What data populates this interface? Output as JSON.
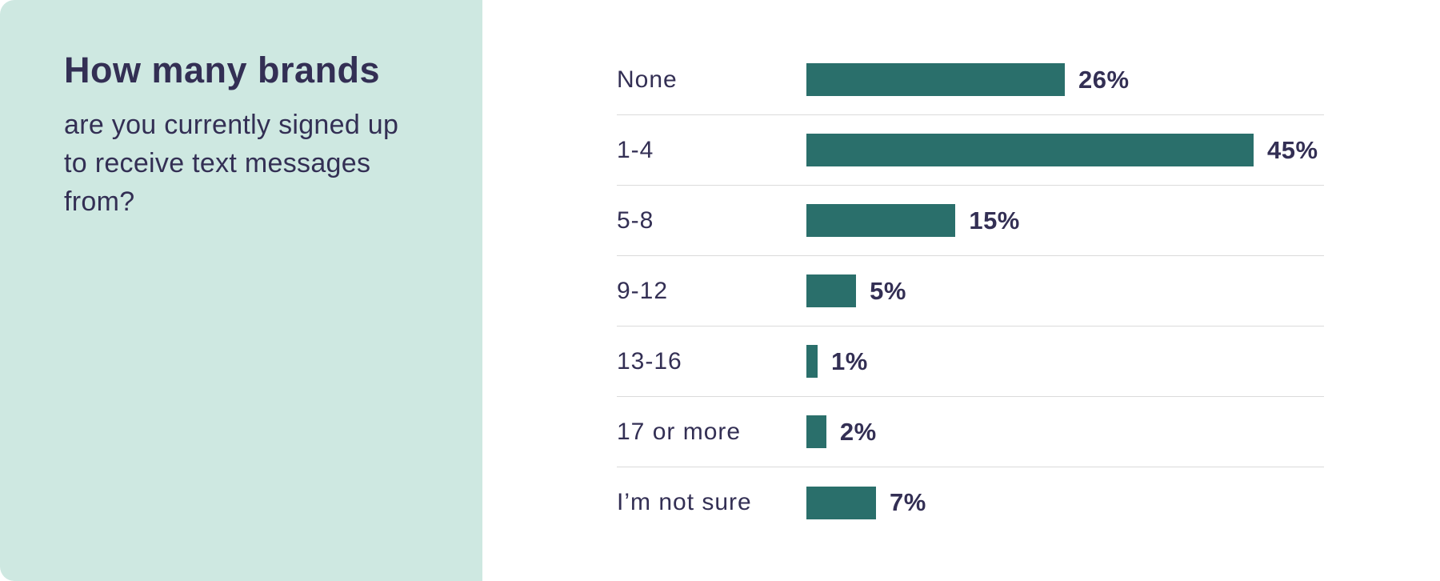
{
  "panel": {
    "title": "How many brands",
    "subtitle": "are you currently signed up to receive text messages from?"
  },
  "colors": {
    "left_panel_background": "#CEE8E1",
    "bar_color": "#2A6F6B",
    "text_color": "#332F54",
    "divider_color": "#DBDBDB",
    "chart_background": "#FFFFFF"
  },
  "chart_data": {
    "type": "bar",
    "orientation": "horizontal",
    "title": "How many brands are you currently signed up to receive text messages from?",
    "categories": [
      "None",
      "1-4",
      "5-8",
      "9-12",
      "13-16",
      "17 or more",
      "I’m not sure"
    ],
    "values": [
      26,
      45,
      15,
      5,
      1,
      2,
      7
    ],
    "value_suffix": "%",
    "xlabel": "",
    "ylabel": "",
    "xlim": [
      0,
      45
    ],
    "grid": "horizontal-row-dividers",
    "legend": "none",
    "data_labels": [
      "26%",
      "45%",
      "15%",
      "5%",
      "1%",
      "2%",
      "7%"
    ]
  }
}
